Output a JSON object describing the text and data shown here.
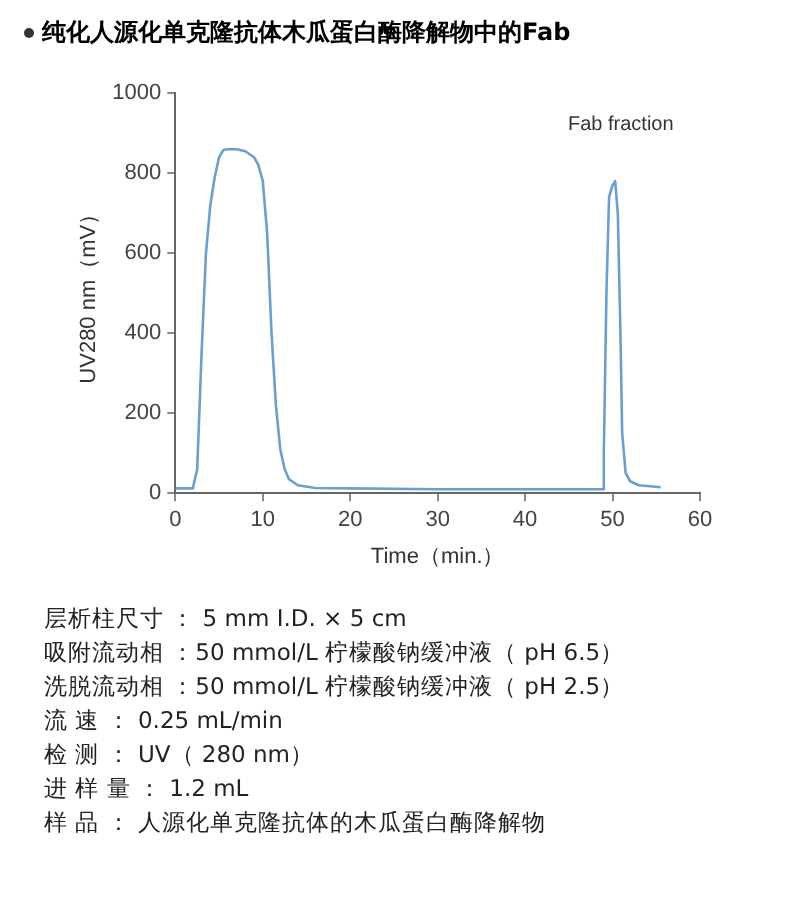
{
  "chart_data": {
    "type": "line",
    "title": "纯化人源化单克隆抗体木瓜蛋白酶降解物中的Fab",
    "xlabel": "Time（min.）",
    "ylabel": "UV280 nm（mV）",
    "x": [
      0,
      2,
      2.5,
      3,
      3.5,
      4,
      4.5,
      5,
      5.5,
      6,
      7,
      8,
      9,
      9.5,
      10,
      10.5,
      11,
      11.5,
      12,
      12.5,
      13,
      14,
      16,
      20,
      30,
      40,
      48.8,
      49,
      49.3,
      49.6,
      50,
      50.3,
      50.6,
      50.9,
      51.1,
      51.5,
      52,
      53,
      55.5
    ],
    "series": [
      {
        "color": "#6a9fd4",
        "values": [
          12,
          12,
          60,
          350,
          600,
          720,
          790,
          840,
          858,
          860,
          860,
          855,
          840,
          820,
          780,
          650,
          400,
          220,
          110,
          60,
          35,
          20,
          13,
          12,
          10,
          10,
          10,
          100,
          500,
          740,
          770,
          780,
          700,
          400,
          150,
          50,
          30,
          20,
          15
        ]
      }
    ],
    "xlim": [
      0,
      60
    ],
    "xticks": [
      0,
      10,
      20,
      30,
      40,
      50,
      60
    ],
    "ylim": [
      0,
      1000
    ],
    "yticks": [
      0,
      200,
      400,
      600,
      800,
      1000
    ],
    "grid": false,
    "legend": false,
    "marker": "none",
    "line_style": "solid",
    "annotations": [
      "Fab fraction",
      "层析柱尺寸 ： 5 mm I.D. × 5 cm",
      "吸附流动相 ：50 mmol/L 柠檬酸钠缓冲液（ pH 6.5）",
      "洗脱流动相 ：50 mmol/L 柠檬酸钠缓冲液（ pH 2.5）",
      "流 速 ： 0.25 mL/min",
      "检 测 ： UV（ 280 nm）",
      "进 样 量 ： 1.2 mL",
      "样 品 ： 人源化单克隆抗体的木瓜蛋白酶降解物"
    ]
  }
}
